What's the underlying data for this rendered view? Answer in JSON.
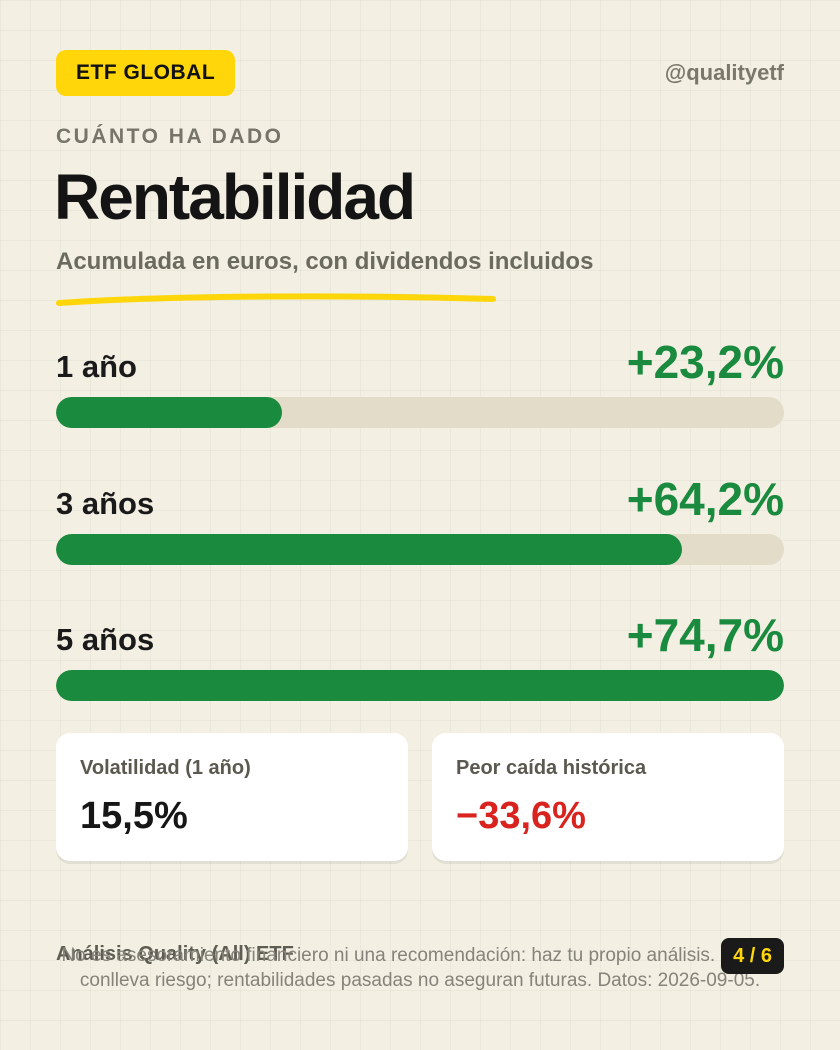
{
  "header": {
    "badge": "ETF GLOBAL",
    "handle": "@qualityetf",
    "eyebrow": "CUÁNTO HA DADO",
    "title": "Rentabilidad",
    "subtitle": "Acumulada en euros, con dividendos incluidos"
  },
  "returns": [
    {
      "label": "1 año",
      "value": "+23,2%",
      "percent": 23.2,
      "bar_fraction": 0.31
    },
    {
      "label": "3 años",
      "value": "+64,2%",
      "percent": 64.2,
      "bar_fraction": 0.86
    },
    {
      "label": "5 años",
      "value": "+74,7%",
      "percent": 74.7,
      "bar_fraction": 1.0
    }
  ],
  "cards": {
    "volatility": {
      "label": "Volatilidad (1 año)",
      "value": "15,5%"
    },
    "drawdown": {
      "label": "Peor caída histórica",
      "value": "−33,6%"
    }
  },
  "footer": {
    "title": "Análisis Quality (All) ETF",
    "disclaimer": "No es asesoramiento financiero ni una recomendación: haz tu propio análisis. Invertir conlleva riesgo; rentabilidades pasadas no aseguran futuras. Datos: 2026-09-05.",
    "page": "4 / 6"
  },
  "colors": {
    "accent": "#ffd60a",
    "positive": "#1a8a3e",
    "negative": "#d8231f",
    "background": "#f3efe3",
    "track": "#e2dcc9"
  }
}
